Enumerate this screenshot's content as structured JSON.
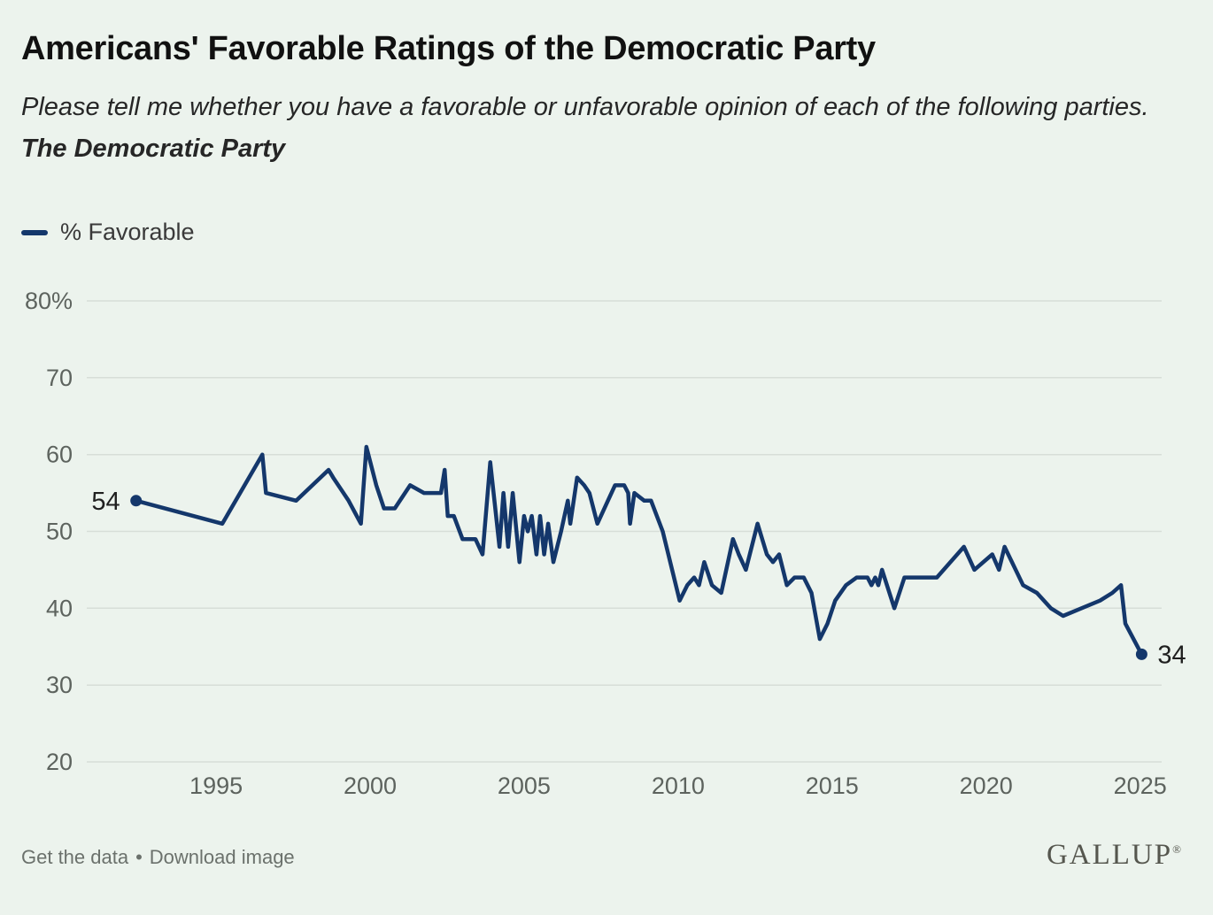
{
  "header": {
    "title": "Americans' Favorable Ratings of the Democratic Party",
    "subtitle_prefix": "Please tell me whether you have a favorable or unfavorable opinion of each of the following parties. ",
    "subtitle_emphasis": "The Democratic Party"
  },
  "legend": {
    "label": "% Favorable",
    "color": "#14376b"
  },
  "chart_data": {
    "type": "line",
    "title": "Americans' Favorable Ratings of the Democratic Party",
    "xlabel": "",
    "ylabel": "",
    "legend_entries": [
      "% Favorable"
    ],
    "grid": "horizontal",
    "legend_position": "top-left",
    "ylim": [
      20,
      80
    ],
    "xlim": [
      1990.8,
      2025.7
    ],
    "y_ticks": [
      {
        "value": 80,
        "label": "80%"
      },
      {
        "value": 70,
        "label": "70"
      },
      {
        "value": 60,
        "label": "60"
      },
      {
        "value": 50,
        "label": "50"
      },
      {
        "value": 40,
        "label": "40"
      },
      {
        "value": 30,
        "label": "30"
      },
      {
        "value": 20,
        "label": "20"
      }
    ],
    "x_ticks": [
      {
        "value": 1995,
        "label": "1995"
      },
      {
        "value": 2000,
        "label": "2000"
      },
      {
        "value": 2005,
        "label": "2005"
      },
      {
        "value": 2010,
        "label": "2010"
      },
      {
        "value": 2015,
        "label": "2015"
      },
      {
        "value": 2020,
        "label": "2020"
      },
      {
        "value": 2025,
        "label": "2025"
      }
    ],
    "colors": {
      "line": "#14376b",
      "grid": "#d7ded8",
      "tick": "#5d635e",
      "label": "#1f1f1f"
    },
    "series": [
      {
        "name": "% Favorable",
        "points": [
          [
            1992.4,
            54
          ],
          [
            1995.2,
            51
          ],
          [
            1996.5,
            60
          ],
          [
            1996.62,
            55
          ],
          [
            1997.6,
            54
          ],
          [
            1998.65,
            58
          ],
          [
            1998.8,
            57
          ],
          [
            1999.3,
            54
          ],
          [
            1999.7,
            51
          ],
          [
            1999.88,
            61
          ],
          [
            2000.2,
            56
          ],
          [
            2000.45,
            53
          ],
          [
            2000.8,
            53
          ],
          [
            2001.3,
            56
          ],
          [
            2001.75,
            55
          ],
          [
            2002.3,
            55
          ],
          [
            2002.42,
            58
          ],
          [
            2002.52,
            52
          ],
          [
            2002.72,
            52
          ],
          [
            2003.0,
            49
          ],
          [
            2003.42,
            49
          ],
          [
            2003.65,
            47
          ],
          [
            2003.9,
            59
          ],
          [
            2004.2,
            48
          ],
          [
            2004.33,
            55
          ],
          [
            2004.48,
            48
          ],
          [
            2004.63,
            55
          ],
          [
            2004.85,
            46
          ],
          [
            2005.0,
            52
          ],
          [
            2005.12,
            50
          ],
          [
            2005.25,
            52
          ],
          [
            2005.4,
            47
          ],
          [
            2005.52,
            52
          ],
          [
            2005.65,
            47
          ],
          [
            2005.78,
            51
          ],
          [
            2005.95,
            46
          ],
          [
            2006.2,
            50
          ],
          [
            2006.42,
            54
          ],
          [
            2006.5,
            51
          ],
          [
            2006.72,
            57
          ],
          [
            2006.95,
            56
          ],
          [
            2007.12,
            55
          ],
          [
            2007.38,
            51
          ],
          [
            2007.72,
            54
          ],
          [
            2007.95,
            56
          ],
          [
            2008.25,
            56
          ],
          [
            2008.38,
            55
          ],
          [
            2008.44,
            51
          ],
          [
            2008.58,
            55
          ],
          [
            2008.9,
            54
          ],
          [
            2009.12,
            54
          ],
          [
            2009.5,
            50
          ],
          [
            2010.05,
            41
          ],
          [
            2010.3,
            43
          ],
          [
            2010.52,
            44
          ],
          [
            2010.68,
            43
          ],
          [
            2010.85,
            46
          ],
          [
            2011.1,
            43
          ],
          [
            2011.4,
            42
          ],
          [
            2011.78,
            49
          ],
          [
            2011.97,
            47
          ],
          [
            2012.2,
            45
          ],
          [
            2012.58,
            51
          ],
          [
            2012.88,
            47
          ],
          [
            2013.08,
            46
          ],
          [
            2013.28,
            47
          ],
          [
            2013.53,
            43
          ],
          [
            2013.78,
            44
          ],
          [
            2014.08,
            44
          ],
          [
            2014.33,
            42
          ],
          [
            2014.6,
            36
          ],
          [
            2014.85,
            38
          ],
          [
            2015.1,
            41
          ],
          [
            2015.45,
            43
          ],
          [
            2015.8,
            44
          ],
          [
            2016.15,
            44
          ],
          [
            2016.28,
            43
          ],
          [
            2016.4,
            44
          ],
          [
            2016.5,
            43
          ],
          [
            2016.62,
            45
          ],
          [
            2017.02,
            40
          ],
          [
            2017.35,
            44
          ],
          [
            2018.4,
            44
          ],
          [
            2019.28,
            48
          ],
          [
            2019.62,
            45
          ],
          [
            2020.2,
            47
          ],
          [
            2020.42,
            45
          ],
          [
            2020.6,
            48
          ],
          [
            2021.2,
            43
          ],
          [
            2021.65,
            42
          ],
          [
            2022.1,
            40
          ],
          [
            2022.5,
            39
          ],
          [
            2023.1,
            40
          ],
          [
            2023.7,
            41
          ],
          [
            2024.1,
            42
          ],
          [
            2024.38,
            43
          ],
          [
            2024.52,
            38
          ],
          [
            2025.05,
            34
          ]
        ]
      }
    ],
    "annotations": [
      {
        "text": "54",
        "year": 1992.4,
        "value": 54,
        "side": "left"
      },
      {
        "text": "34",
        "year": 2025.05,
        "value": 34,
        "side": "right"
      }
    ]
  },
  "footer": {
    "get_data_label": "Get the data",
    "separator": "•",
    "download_label": "Download image",
    "brand": "GALLUP",
    "registered": "®"
  }
}
